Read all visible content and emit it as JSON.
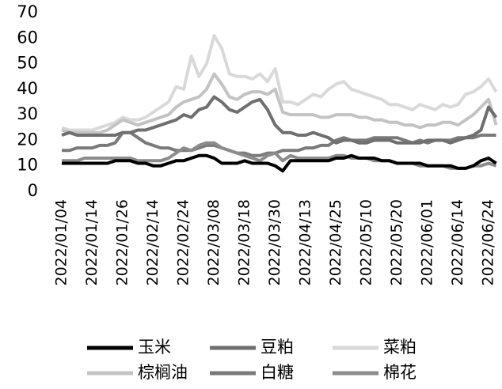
{
  "chart_data": {
    "type": "line",
    "categories": [
      "2022/01/04",
      null,
      null,
      null,
      "2022/01/14",
      null,
      null,
      null,
      "2022/01/26",
      null,
      null,
      null,
      "2022/02/14",
      null,
      null,
      null,
      "2022/02/24",
      null,
      null,
      null,
      "2022/03/08",
      null,
      null,
      null,
      "2022/03/18",
      null,
      null,
      null,
      "2022/03/30",
      null,
      null,
      null,
      "2022/04/13",
      null,
      null,
      null,
      "2022/04/25",
      null,
      null,
      null,
      "2022/05/10",
      null,
      null,
      null,
      "2022/05/20",
      null,
      null,
      null,
      "2022/06/01",
      null,
      null,
      null,
      "2022/06/14",
      null,
      null,
      null,
      "2022/06/24",
      null
    ],
    "ylim": [
      0,
      70
    ],
    "yticks": [
      0,
      10,
      20,
      30,
      40,
      50,
      60,
      70
    ],
    "series": [
      {
        "name": "菜粕",
        "color": "#d9d9d9",
        "values": [
          25,
          24,
          24,
          24,
          24,
          25,
          26,
          27,
          29,
          28,
          28,
          29,
          31,
          33,
          35,
          41,
          40,
          53,
          45,
          50,
          61,
          56,
          46,
          45,
          45,
          44,
          46,
          43,
          48,
          35,
          35,
          34,
          36,
          38,
          37,
          40,
          42,
          43,
          40,
          39,
          38,
          37,
          36,
          34,
          34,
          33,
          32,
          34,
          33,
          32,
          34,
          33,
          34,
          38,
          39,
          41,
          44,
          39
        ]
      },
      {
        "name": "棕榈油",
        "color": "#c3c3c3",
        "values": [
          24,
          23,
          23,
          23,
          23,
          23,
          24,
          26,
          28,
          27,
          26,
          27,
          28,
          29,
          30,
          33,
          35,
          36,
          37,
          40,
          46,
          42,
          37,
          36,
          38,
          39,
          39,
          38,
          40,
          31,
          30,
          30,
          30,
          30,
          29,
          29,
          30,
          30,
          30,
          29,
          29,
          28,
          28,
          27,
          27,
          26,
          26,
          25,
          26,
          26,
          27,
          27,
          26,
          28,
          30,
          33,
          36,
          26
        ]
      },
      {
        "name": "白糖",
        "color": "#7a7a7a",
        "values": [
          16,
          16,
          17,
          17,
          17,
          18,
          18,
          19,
          23,
          23,
          21,
          19,
          18,
          17,
          17,
          16,
          16,
          16,
          17,
          18,
          18,
          17,
          16,
          15,
          15,
          14,
          14,
          15,
          15,
          16,
          16,
          16,
          17,
          17,
          18,
          18,
          20,
          21,
          20,
          20,
          20,
          21,
          21,
          21,
          21,
          20,
          19,
          20,
          19,
          20,
          20,
          20,
          21,
          21,
          21,
          22,
          22,
          22
        ]
      },
      {
        "name": "棉花",
        "color": "#8c8c8c",
        "values": [
          12,
          12,
          12,
          13,
          13,
          13,
          13,
          13,
          13,
          13,
          12,
          12,
          12,
          12,
          13,
          15,
          17,
          16,
          18,
          19,
          19,
          17,
          16,
          15,
          14,
          13,
          12,
          14,
          15,
          12,
          14,
          13,
          13,
          13,
          13,
          13,
          14,
          14,
          13,
          13,
          13,
          12,
          12,
          12,
          11,
          11,
          11,
          10,
          10,
          10,
          10,
          9,
          9,
          9,
          10,
          10,
          11,
          10
        ]
      },
      {
        "name": "豆粕",
        "color": "#6f6f6f",
        "values": [
          22,
          23,
          22,
          22,
          22,
          22,
          22,
          22,
          23,
          23,
          24,
          24,
          25,
          26,
          27,
          28,
          30,
          29,
          32,
          33,
          37,
          35,
          32,
          31,
          33,
          35,
          36,
          32,
          26,
          23,
          23,
          22,
          22,
          23,
          22,
          21,
          19,
          20,
          20,
          19,
          19,
          20,
          20,
          20,
          19,
          19,
          19,
          19,
          20,
          20,
          20,
          19,
          20,
          21,
          22,
          24,
          33,
          29
        ]
      },
      {
        "name": "玉米",
        "color": "#000000",
        "values": [
          11,
          11,
          11,
          11,
          11,
          11,
          11,
          12,
          12,
          12,
          11,
          11,
          10,
          10,
          11,
          12,
          12,
          13,
          14,
          14,
          13,
          11,
          11,
          11,
          12,
          11,
          11,
          11,
          10,
          8,
          12,
          12,
          12,
          12,
          12,
          12,
          13,
          13,
          14,
          13,
          13,
          13,
          12,
          12,
          11,
          11,
          11,
          11,
          10,
          10,
          10,
          10,
          9,
          9,
          10,
          12,
          13,
          11
        ]
      }
    ],
    "legend": "bottom"
  }
}
